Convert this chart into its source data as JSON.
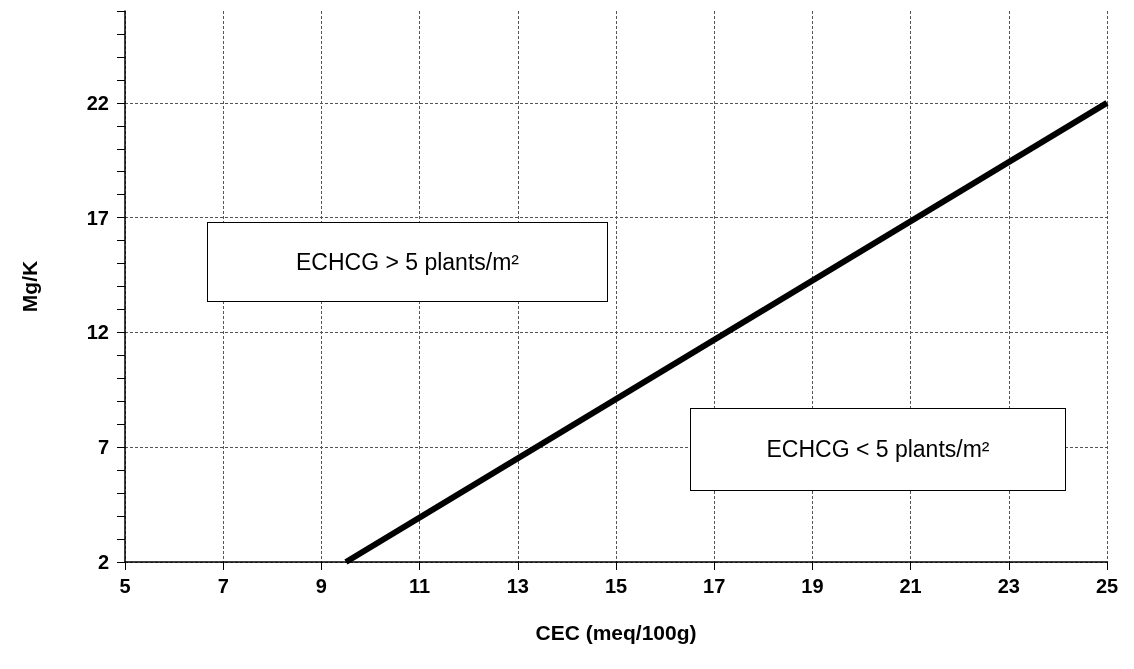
{
  "chart_data": {
    "type": "line",
    "xlabel": "CEC (meq/100g)",
    "ylabel": "Mg/K",
    "annotations": [
      "ECHCG > 5 plants/m²",
      "ECHCG < 5 plants/m²"
    ],
    "series": [
      {
        "color": "#000000",
        "x": [
          9.5,
          25
        ],
        "values": [
          2,
          22
        ]
      }
    ],
    "xlim": [
      5,
      25
    ],
    "xticks": [
      5,
      7,
      9,
      11,
      13,
      15,
      17,
      19,
      21,
      23,
      25
    ],
    "ylim": [
      2,
      26
    ],
    "yticks": [
      2,
      {
        "value": 3,
        "label": null
      },
      {
        "value": 4,
        "label": null
      },
      {
        "value": 5,
        "label": null
      },
      {
        "value": 6,
        "label": null
      },
      7,
      {
        "value": 8,
        "label": null
      },
      {
        "value": 9,
        "label": null
      },
      {
        "value": 10,
        "label": null
      },
      {
        "value": 11,
        "label": null
      },
      12,
      {
        "value": 13,
        "label": null
      },
      {
        "value": 14,
        "label": null
      },
      {
        "value": 15,
        "label": null
      },
      {
        "value": 16,
        "label": null
      },
      17,
      {
        "value": 18,
        "label": null
      },
      {
        "value": 19,
        "label": null
      },
      {
        "value": 20,
        "label": null
      },
      {
        "value": 21,
        "label": null
      },
      22,
      {
        "value": 23,
        "label": null
      },
      {
        "value": 24,
        "label": null
      },
      {
        "value": 25,
        "label": null
      },
      {
        "value": 26,
        "label": null
      }
    ],
    "grid": true,
    "marker": "none",
    "line_style": "solid"
  }
}
